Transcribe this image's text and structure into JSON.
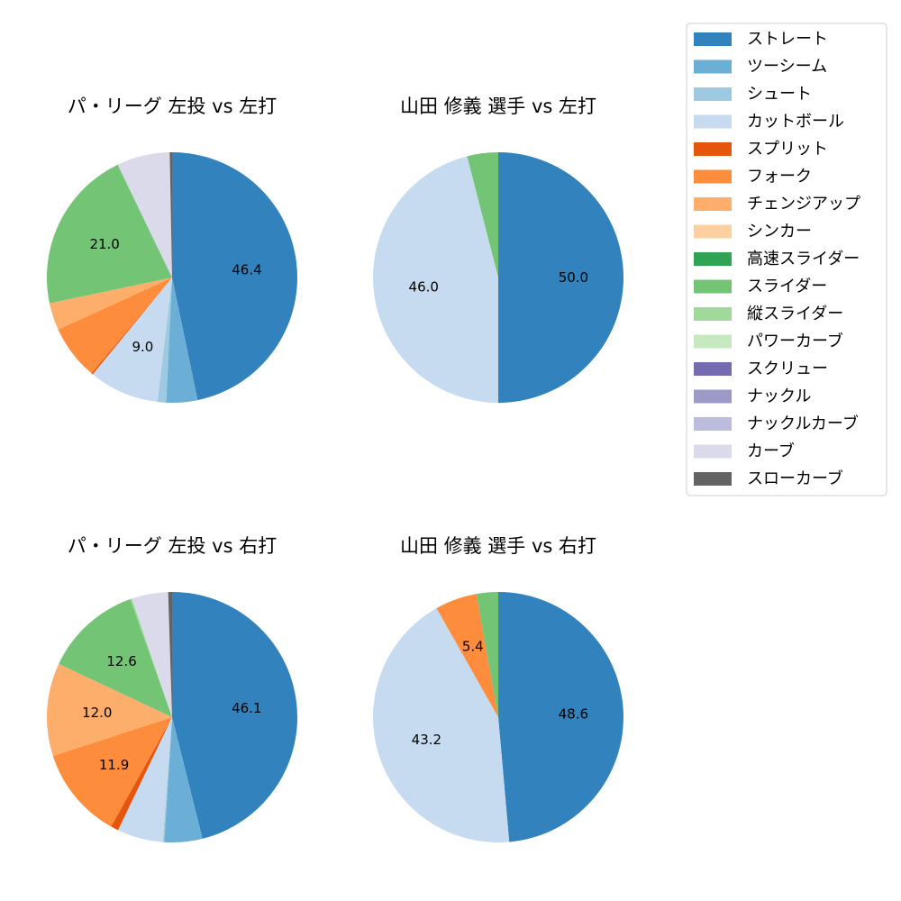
{
  "legend": {
    "items": [
      {
        "label": "ストレート",
        "color": "#3182bd"
      },
      {
        "label": "ツーシーム",
        "color": "#6baed6"
      },
      {
        "label": "シュート",
        "color": "#9ecae1"
      },
      {
        "label": "カットボール",
        "color": "#c6dbef"
      },
      {
        "label": "スプリット",
        "color": "#e6550d"
      },
      {
        "label": "フォーク",
        "color": "#fd8d3c"
      },
      {
        "label": "チェンジアップ",
        "color": "#fdae6b"
      },
      {
        "label": "シンカー",
        "color": "#fdd0a2"
      },
      {
        "label": "高速スライダー",
        "color": "#31a354"
      },
      {
        "label": "スライダー",
        "color": "#74c476"
      },
      {
        "label": "縦スライダー",
        "color": "#a1d99b"
      },
      {
        "label": "パワーカーブ",
        "color": "#c7e9c0"
      },
      {
        "label": "スクリュー",
        "color": "#756bb1"
      },
      {
        "label": "ナックル",
        "color": "#9e9ac8"
      },
      {
        "label": "ナックルカーブ",
        "color": "#bcbddc"
      },
      {
        "label": "カーブ",
        "color": "#dadaeb"
      },
      {
        "label": "スローカーブ",
        "color": "#636363"
      }
    ]
  },
  "chart_data": [
    {
      "type": "pie",
      "title": "パ・リーグ 左投 vs 左打",
      "start_angle_deg": 90,
      "direction": "clockwise",
      "slices": [
        {
          "category": "ストレート",
          "value": 46.4,
          "label": "46.4"
        },
        {
          "category": "ツーシーム",
          "value": 4.0,
          "label": ""
        },
        {
          "category": "シュート",
          "value": 1.1,
          "label": ""
        },
        {
          "category": "カットボール",
          "value": 9.0,
          "label": "9.0"
        },
        {
          "category": "スプリット",
          "value": 0.2,
          "label": ""
        },
        {
          "category": "フォーク",
          "value": 7.0,
          "label": ""
        },
        {
          "category": "チェンジアップ",
          "value": 3.5,
          "label": ""
        },
        {
          "category": "スライダー",
          "value": 21.0,
          "label": "21.0"
        },
        {
          "category": "カーブ",
          "value": 6.8,
          "label": ""
        },
        {
          "category": "スローカーブ",
          "value": 0.3,
          "label": ""
        }
      ]
    },
    {
      "type": "pie",
      "title": "山田 修義 選手 vs 左打",
      "start_angle_deg": 90,
      "direction": "clockwise",
      "slices": [
        {
          "category": "ストレート",
          "value": 50.0,
          "label": "50.0"
        },
        {
          "category": "カットボール",
          "value": 46.0,
          "label": "46.0"
        },
        {
          "category": "スライダー",
          "value": 4.0,
          "label": ""
        }
      ]
    },
    {
      "type": "pie",
      "title": "パ・リーグ 左投 vs 右打",
      "start_angle_deg": 90,
      "direction": "clockwise",
      "slices": [
        {
          "category": "ストレート",
          "value": 46.1,
          "label": "46.1"
        },
        {
          "category": "ツーシーム",
          "value": 4.9,
          "label": ""
        },
        {
          "category": "シュート",
          "value": 0.2,
          "label": ""
        },
        {
          "category": "カットボール",
          "value": 5.9,
          "label": ""
        },
        {
          "category": "スプリット",
          "value": 1.0,
          "label": ""
        },
        {
          "category": "フォーク",
          "value": 11.9,
          "label": "11.9"
        },
        {
          "category": "チェンジアップ",
          "value": 12.0,
          "label": "12.0"
        },
        {
          "category": "スライダー",
          "value": 12.6,
          "label": "12.6"
        },
        {
          "category": "縦スライダー",
          "value": 0.2,
          "label": ""
        },
        {
          "category": "カーブ",
          "value": 4.7,
          "label": ""
        },
        {
          "category": "スローカーブ",
          "value": 0.5,
          "label": ""
        }
      ]
    },
    {
      "type": "pie",
      "title": "山田 修義 選手 vs 右打",
      "start_angle_deg": 90,
      "direction": "clockwise",
      "slices": [
        {
          "category": "ストレート",
          "value": 48.6,
          "label": "48.6"
        },
        {
          "category": "カットボール",
          "value": 43.2,
          "label": "43.2"
        },
        {
          "category": "フォーク",
          "value": 5.4,
          "label": "5.4"
        },
        {
          "category": "スライダー",
          "value": 2.8,
          "label": ""
        }
      ]
    }
  ]
}
